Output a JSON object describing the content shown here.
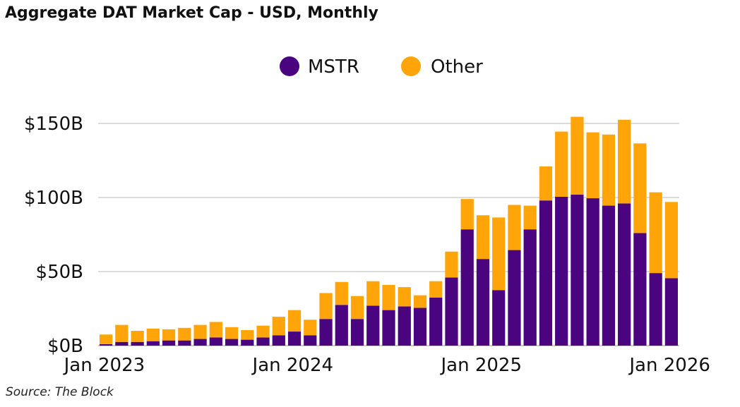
{
  "title": "Aggregate DAT Market Cap - USD, Monthly",
  "source": "Source: The Block",
  "colors": {
    "MSTR": "#4a0480",
    "Other": "#ffa50a",
    "grid": "#c8c8c8",
    "text": "#111111"
  },
  "chart_data": {
    "type": "bar",
    "stacked": true,
    "title": "Aggregate DAT Market Cap - USD, Monthly",
    "xlabel": "",
    "ylabel": "",
    "ylim": [
      0,
      150
    ],
    "y_unit": "USD billions",
    "y_ticks": [
      0,
      50,
      100,
      150
    ],
    "y_tick_labels": [
      "$0B",
      "$50B",
      "$100B",
      "$150B"
    ],
    "x_tick_labels": [
      {
        "label": "Jan 2023",
        "index": 0
      },
      {
        "label": "Jan 2024",
        "index": 12
      },
      {
        "label": "Jan 2025",
        "index": 24
      },
      {
        "label": "Jan 2026",
        "index": 36
      }
    ],
    "grid": true,
    "legend_position": "top-center",
    "categories": [
      "2023-01",
      "2023-02",
      "2023-03",
      "2023-04",
      "2023-05",
      "2023-06",
      "2023-07",
      "2023-08",
      "2023-09",
      "2023-10",
      "2023-11",
      "2023-12",
      "2024-01",
      "2024-02",
      "2024-03",
      "2024-04",
      "2024-05",
      "2024-06",
      "2024-07",
      "2024-08",
      "2024-09",
      "2024-10",
      "2024-11",
      "2024-12",
      "2025-01",
      "2025-02",
      "2025-03",
      "2025-04",
      "2025-05",
      "2025-06",
      "2025-07",
      "2025-08",
      "2025-09",
      "2025-10",
      "2025-11",
      "2025-12",
      "2026-01"
    ],
    "series": [
      {
        "name": "MSTR",
        "values": [
          1,
          2.5,
          2.5,
          3,
          3.5,
          3.5,
          4.5,
          5.5,
          4.5,
          4,
          5.5,
          7,
          9.5,
          7,
          18,
          27.5,
          18,
          27,
          24,
          26.5,
          25.5,
          32.5,
          46,
          78.5,
          58.5,
          37.5,
          64.5,
          78.5,
          98,
          100.5,
          102,
          99.5,
          94.5,
          96,
          76,
          49,
          45.5
        ]
      },
      {
        "name": "Other",
        "values": [
          6.5,
          11.5,
          7.5,
          8.5,
          7.5,
          8.5,
          9.5,
          10.5,
          8,
          6.5,
          8,
          12.5,
          14.5,
          10.5,
          17.5,
          15.5,
          15.5,
          16.5,
          17,
          13,
          8.5,
          11,
          17.5,
          20.5,
          29.5,
          49,
          30.5,
          16,
          23,
          44,
          52.5,
          44.5,
          48,
          56.5,
          60.5,
          54.5,
          51.5
        ]
      }
    ]
  }
}
